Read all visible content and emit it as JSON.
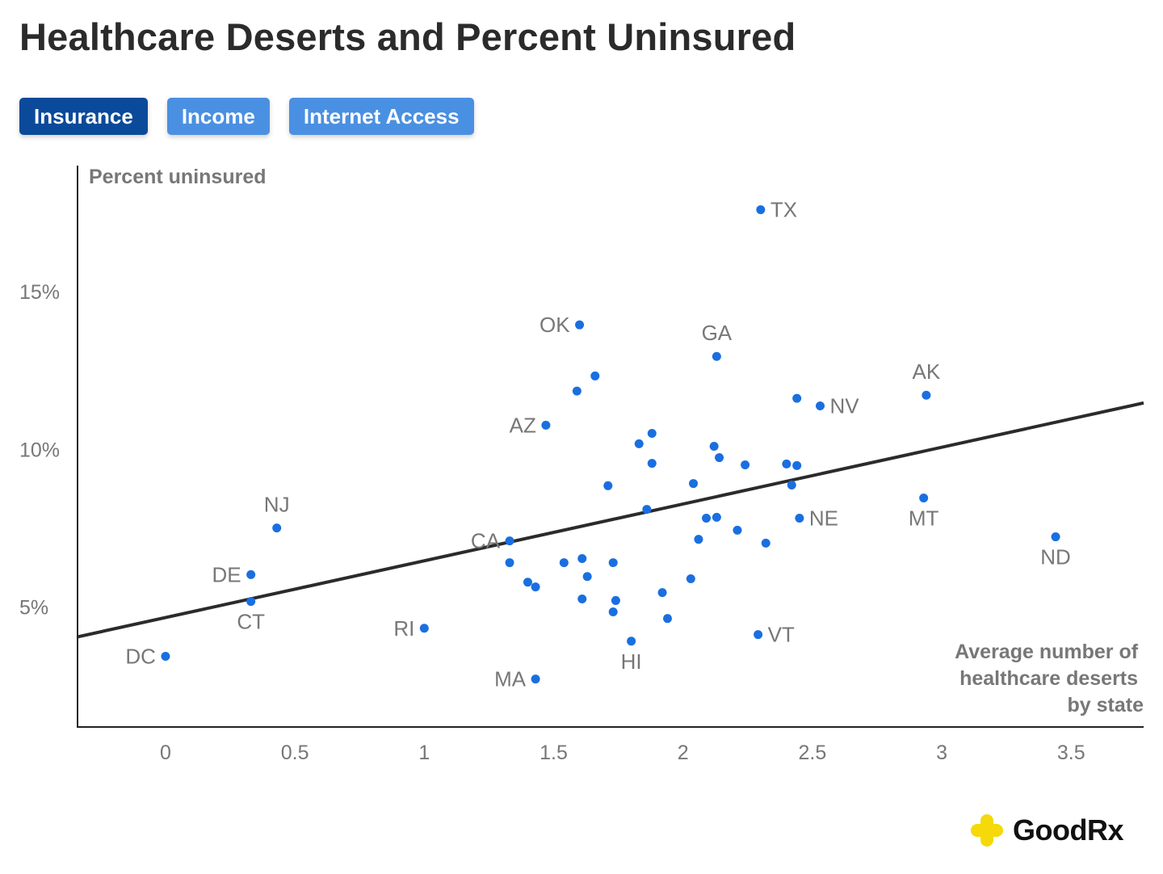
{
  "title": "Healthcare Deserts and Percent Uninsured",
  "tabs": [
    {
      "label": "Insurance",
      "active": true
    },
    {
      "label": "Income",
      "active": false
    },
    {
      "label": "Internet Access",
      "active": false
    }
  ],
  "brand": {
    "name": "GoodRx",
    "logo_color": "#f5d90a"
  },
  "colors": {
    "point": "#1a6fe0",
    "trend": "#2b2b2b",
    "axis_text": "#777777",
    "active_tab": "#0b4a9a",
    "tab": "#4a90e2"
  },
  "chart_data": {
    "type": "scatter",
    "title": "Healthcare Deserts and Percent Uninsured",
    "xlabel": "Average number of healthcare deserts by state",
    "xlabel_lines": [
      "Average number of",
      "healthcare deserts",
      "by state"
    ],
    "ylabel": "Percent uninsured",
    "xlim": [
      -0.34,
      3.78
    ],
    "ylim": [
      1.2,
      19.0
    ],
    "xticks": [
      {
        "value": 0,
        "label": "0"
      },
      {
        "value": 0.5,
        "label": "0.5"
      },
      {
        "value": 1,
        "label": "1"
      },
      {
        "value": 1.5,
        "label": "1.5"
      },
      {
        "value": 2,
        "label": "2"
      },
      {
        "value": 2.5,
        "label": "2.5"
      },
      {
        "value": 3,
        "label": "3"
      },
      {
        "value": 3.5,
        "label": "3.5"
      }
    ],
    "yticks": [
      {
        "value": 5,
        "label": "5%"
      },
      {
        "value": 10,
        "label": "10%"
      },
      {
        "value": 15,
        "label": "15%"
      }
    ],
    "grid": false,
    "trendline": {
      "slope": 1.8,
      "intercept": 4.67
    },
    "points": [
      {
        "x": 2.3,
        "y": 17.6,
        "label": "TX",
        "label_pos": "right"
      },
      {
        "x": 1.6,
        "y": 13.95,
        "label": "OK",
        "label_pos": "left"
      },
      {
        "x": 2.13,
        "y": 12.95,
        "label": "GA",
        "label_pos": "above"
      },
      {
        "x": 1.66,
        "y": 12.33
      },
      {
        "x": 1.59,
        "y": 11.85
      },
      {
        "x": 2.94,
        "y": 11.72,
        "label": "AK",
        "label_pos": "above"
      },
      {
        "x": 2.44,
        "y": 11.62
      },
      {
        "x": 2.53,
        "y": 11.38,
        "label": "NV",
        "label_pos": "right"
      },
      {
        "x": 1.47,
        "y": 10.77,
        "label": "AZ",
        "label_pos": "left"
      },
      {
        "x": 1.88,
        "y": 10.51
      },
      {
        "x": 1.83,
        "y": 10.18
      },
      {
        "x": 2.12,
        "y": 10.1
      },
      {
        "x": 2.14,
        "y": 9.74
      },
      {
        "x": 1.88,
        "y": 9.56
      },
      {
        "x": 2.24,
        "y": 9.51
      },
      {
        "x": 2.4,
        "y": 9.54
      },
      {
        "x": 2.44,
        "y": 9.49
      },
      {
        "x": 2.04,
        "y": 8.92
      },
      {
        "x": 1.71,
        "y": 8.85
      },
      {
        "x": 2.42,
        "y": 8.87
      },
      {
        "x": 2.93,
        "y": 8.46,
        "label": "MT",
        "label_pos": "below"
      },
      {
        "x": 1.86,
        "y": 8.1
      },
      {
        "x": 2.09,
        "y": 7.82
      },
      {
        "x": 2.13,
        "y": 7.85
      },
      {
        "x": 2.45,
        "y": 7.82,
        "label": "NE",
        "label_pos": "right"
      },
      {
        "x": 0.43,
        "y": 7.51,
        "label": "NJ",
        "label_pos": "above"
      },
      {
        "x": 2.21,
        "y": 7.44
      },
      {
        "x": 3.44,
        "y": 7.23,
        "label": "ND",
        "label_pos": "below"
      },
      {
        "x": 1.33,
        "y": 7.1,
        "label": "CA",
        "label_pos": "left"
      },
      {
        "x": 2.06,
        "y": 7.15
      },
      {
        "x": 2.32,
        "y": 7.03
      },
      {
        "x": 1.61,
        "y": 6.54
      },
      {
        "x": 1.33,
        "y": 6.41
      },
      {
        "x": 1.54,
        "y": 6.41
      },
      {
        "x": 1.73,
        "y": 6.41
      },
      {
        "x": 0.33,
        "y": 6.03,
        "label": "DE",
        "label_pos": "left"
      },
      {
        "x": 1.63,
        "y": 5.97
      },
      {
        "x": 2.03,
        "y": 5.9
      },
      {
        "x": 1.4,
        "y": 5.79
      },
      {
        "x": 1.43,
        "y": 5.64
      },
      {
        "x": 1.92,
        "y": 5.46
      },
      {
        "x": 1.61,
        "y": 5.26
      },
      {
        "x": 0.33,
        "y": 5.18,
        "label": "CT",
        "label_pos": "below"
      },
      {
        "x": 1.74,
        "y": 5.21
      },
      {
        "x": 1.73,
        "y": 4.85
      },
      {
        "x": 1.94,
        "y": 4.64
      },
      {
        "x": 1.0,
        "y": 4.33,
        "label": "RI",
        "label_pos": "left"
      },
      {
        "x": 2.29,
        "y": 4.13,
        "label": "VT",
        "label_pos": "right"
      },
      {
        "x": 1.8,
        "y": 3.92,
        "label": "HI",
        "label_pos": "below"
      },
      {
        "x": 0.0,
        "y": 3.44,
        "label": "DC",
        "label_pos": "left"
      },
      {
        "x": 1.43,
        "y": 2.72,
        "label": "MA",
        "label_pos": "left"
      }
    ]
  }
}
